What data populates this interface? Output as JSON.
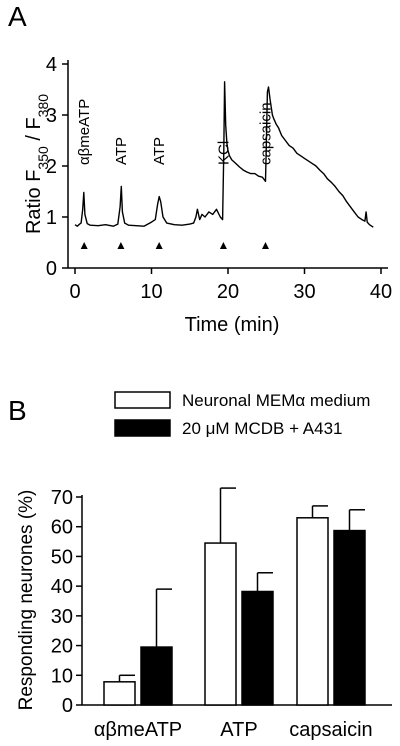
{
  "panels": {
    "a_letter": "A",
    "b_letter": "B"
  },
  "chart_data": [
    {
      "type": "line",
      "ylabel_main": "Ratio F",
      "ylabel_sub1": "350",
      "ylabel_sep": " / F",
      "ylabel_sub2": "380",
      "xlabel": "Time (min)",
      "xlim": [
        0,
        40
      ],
      "ylim": [
        0,
        4
      ],
      "xticks": [
        0,
        10,
        20,
        30,
        40
      ],
      "yticks": [
        0,
        1,
        2,
        3,
        4
      ],
      "grid": false,
      "series": [
        {
          "x": [
            0,
            0.3,
            0.6,
            0.8,
            1.0,
            1.15,
            1.3,
            1.6,
            2.0,
            3.0,
            4.0,
            5.0,
            5.6,
            5.9,
            6.05,
            6.2,
            6.5,
            7.0,
            8.0,
            9.0,
            10.0,
            10.5,
            10.8,
            11.0,
            11.2,
            11.5,
            12.0,
            13.0,
            14.0,
            15.0,
            15.5,
            15.8,
            16.0,
            16.3,
            16.6,
            17.0,
            17.5,
            18.0,
            18.5,
            19.0,
            19.3,
            19.45,
            19.55,
            19.7,
            19.85,
            20.0,
            20.2,
            20.5,
            21.0,
            21.5,
            22.0,
            22.5,
            23.0,
            23.5,
            24.0,
            24.5,
            24.9,
            25.0,
            25.15,
            25.3,
            25.5,
            25.8,
            26.0,
            26.3,
            26.6,
            27.0,
            27.5,
            28.0,
            28.5,
            29.0,
            29.5,
            30.0,
            30.5,
            31.0,
            31.5,
            32.0,
            32.5,
            33.0,
            33.5,
            34.0,
            34.5,
            35.0,
            35.5,
            36.0,
            36.5,
            37.0,
            37.5,
            37.9,
            38.05,
            38.2,
            38.5,
            39.0
          ],
          "y": [
            0.85,
            0.82,
            0.86,
            0.88,
            1.15,
            1.48,
            1.05,
            0.87,
            0.84,
            0.83,
            0.85,
            0.82,
            0.86,
            1.2,
            1.6,
            1.1,
            0.88,
            0.84,
            0.83,
            0.82,
            0.9,
            0.95,
            1.25,
            1.4,
            1.3,
            1.0,
            0.88,
            0.85,
            0.84,
            0.86,
            0.88,
            1.0,
            1.15,
            0.95,
            1.05,
            1.0,
            1.1,
            1.05,
            1.15,
            1.0,
            0.95,
            2.3,
            3.65,
            2.8,
            2.45,
            2.3,
            2.2,
            2.12,
            2.05,
            1.98,
            1.92,
            1.88,
            1.85,
            1.85,
            1.8,
            1.78,
            1.7,
            2.4,
            3.45,
            3.55,
            3.3,
            3.0,
            2.92,
            2.82,
            2.75,
            2.6,
            2.5,
            2.4,
            2.35,
            2.25,
            2.2,
            2.15,
            2.1,
            2.05,
            2.0,
            1.92,
            1.85,
            1.75,
            1.68,
            1.6,
            1.5,
            1.42,
            1.3,
            1.2,
            1.1,
            1.0,
            0.95,
            0.92,
            1.1,
            0.9,
            0.85,
            0.8
          ]
        }
      ],
      "stimuli": [
        {
          "label": "αβmeATP",
          "time": 1.2
        },
        {
          "label": "ATP",
          "time": 6.0
        },
        {
          "label": "ATP",
          "time": 11.0
        },
        {
          "label": "KCl",
          "time": 19.4
        },
        {
          "label": "capsaicin",
          "time": 24.9
        }
      ]
    },
    {
      "type": "bar",
      "ylabel": "Responding neurones (%)",
      "ylim": [
        0,
        70
      ],
      "yticks": [
        0,
        10,
        20,
        30,
        40,
        50,
        60,
        70
      ],
      "categories": [
        "αβmeATP",
        "ATP",
        "capsaicin"
      ],
      "legend_position": "top",
      "grid": false,
      "series": [
        {
          "name": "Neuronal MEMα medium",
          "color": "#ffffff",
          "values": [
            7.8,
            54.5,
            63
          ],
          "errors": [
            2.2,
            18.5,
            4
          ]
        },
        {
          "name": "20 μM MCDB + A431",
          "color": "#000000",
          "values": [
            19.5,
            38.2,
            58.7
          ],
          "errors": [
            19.5,
            6.3,
            7
          ]
        }
      ]
    }
  ]
}
